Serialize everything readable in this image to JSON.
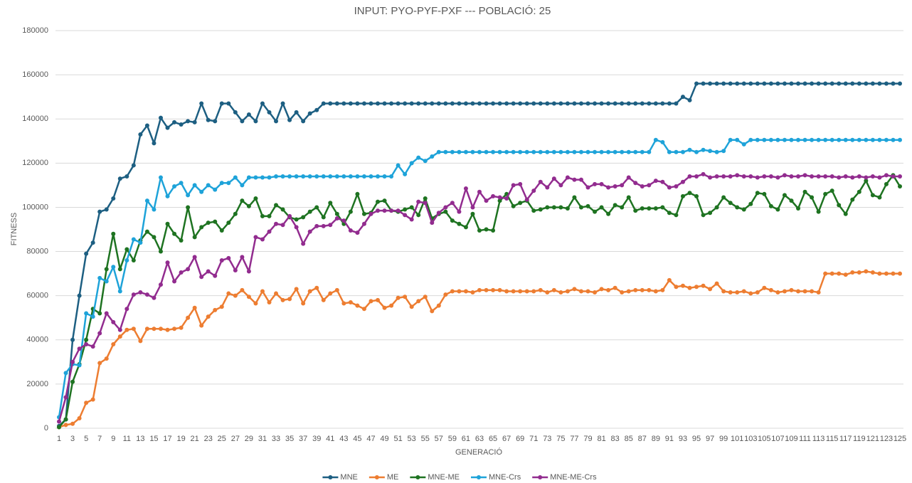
{
  "chart_data": {
    "type": "line",
    "title": "INPUT: PYO-PYF-PXF  ---  POBLACIÓ: 25",
    "x_label": "GENERACIÓ",
    "y_label": "FITNESS",
    "categories": [
      1,
      null,
      3,
      null,
      5,
      null,
      7,
      null,
      9,
      null,
      11,
      null,
      13,
      null,
      15,
      null,
      17,
      null,
      19,
      null,
      21,
      null,
      23,
      null,
      25,
      null,
      27,
      null,
      29,
      null,
      31,
      null,
      33,
      null,
      35,
      null,
      37,
      null,
      39,
      null,
      41,
      null,
      43,
      null,
      45,
      null,
      47,
      null,
      49,
      null,
      51,
      null,
      53,
      null,
      55,
      null,
      57,
      null,
      59,
      null,
      61,
      null,
      63,
      null,
      65,
      null,
      67,
      null,
      69,
      null,
      71,
      null,
      73,
      null,
      75,
      null,
      77,
      null,
      79,
      null,
      81,
      null,
      83,
      null,
      85,
      null,
      87,
      null,
      89,
      null,
      91,
      null,
      93,
      null,
      95,
      null,
      97,
      null,
      99,
      null,
      101,
      null,
      103,
      null,
      105,
      null,
      107,
      null,
      109,
      null,
      111,
      null,
      113,
      null,
      115,
      null,
      117,
      null,
      119,
      null,
      121,
      null,
      123,
      null,
      125
    ],
    "ylim": [
      0,
      180000
    ],
    "yticks": [
      0,
      20000,
      40000,
      60000,
      80000,
      100000,
      120000,
      140000,
      160000,
      180000
    ],
    "grid": true,
    "legend": "bottom",
    "series": [
      {
        "name": "MNE",
        "color": "#1d5f82",
        "values": [
          1000,
          4000,
          40000,
          60000,
          79000,
          84000,
          98000,
          99000,
          104000,
          113000,
          114000,
          119000,
          133000,
          137000,
          129000,
          140500,
          136000,
          138500,
          137500,
          139000,
          138500,
          147000,
          139500,
          139000,
          147000,
          147000,
          143000,
          139000,
          142000,
          139000,
          147000,
          143000,
          139000,
          147000,
          139500,
          143000,
          139000,
          142500,
          144000,
          147000,
          147000,
          147000,
          147000,
          147000,
          147000,
          147000,
          147000,
          147000,
          147000,
          147000,
          147000,
          147000,
          147000,
          147000,
          147000,
          147000,
          147000,
          147000,
          147000,
          147000,
          147000,
          147000,
          147000,
          147000,
          147000,
          147000,
          147000,
          147000,
          147000,
          147000,
          147000,
          147000,
          147000,
          147000,
          147000,
          147000,
          147000,
          147000,
          147000,
          147000,
          147000,
          147000,
          147000,
          147000,
          147000,
          147000,
          147000,
          147000,
          147000,
          147000,
          147000,
          147000,
          150000,
          148500,
          156000,
          156000,
          156000,
          156000,
          156000,
          156000,
          156000,
          156000,
          156000,
          156000,
          156000,
          156000,
          156000,
          156000,
          156000,
          156000,
          156000,
          156000,
          156000,
          156000,
          156000,
          156000,
          156000,
          156000,
          156000,
          156000,
          156000,
          156000,
          156000,
          156000,
          156000
        ]
      },
      {
        "name": "ME",
        "color": "#ed7d31",
        "values": [
          500,
          1500,
          2000,
          4500,
          11500,
          13000,
          29500,
          31500,
          38000,
          41500,
          44500,
          45000,
          39500,
          45000,
          45000,
          45000,
          44500,
          45000,
          45500,
          50000,
          54500,
          46500,
          50500,
          53500,
          55000,
          61000,
          60000,
          62500,
          59500,
          56500,
          62000,
          57000,
          61000,
          58000,
          58500,
          63000,
          56500,
          62000,
          63500,
          58000,
          61000,
          62500,
          56500,
          57000,
          55500,
          54000,
          57500,
          58000,
          54500,
          55500,
          59000,
          59500,
          55000,
          57500,
          59500,
          53000,
          55500,
          60500,
          62000,
          62000,
          62000,
          61500,
          62500,
          62500,
          62500,
          62500,
          62000,
          62000,
          62000,
          62000,
          62000,
          62500,
          61500,
          62500,
          61500,
          62000,
          63000,
          62000,
          62000,
          61500,
          63000,
          62500,
          63500,
          61500,
          62000,
          62500,
          62500,
          62500,
          62000,
          62500,
          67000,
          64000,
          64500,
          63500,
          64000,
          64500,
          63000,
          65500,
          62000,
          61500,
          61500,
          62000,
          61000,
          61500,
          63500,
          62500,
          61500,
          62000,
          62500,
          62000,
          62000,
          62000,
          61500,
          70000,
          70000,
          70000,
          69500,
          70500,
          70500,
          71000,
          70500,
          70000,
          70000,
          70000,
          70000
        ]
      },
      {
        "name": "MNE-ME",
        "color": "#1e7321",
        "values": [
          500,
          4000,
          21000,
          29000,
          40000,
          54000,
          52000,
          72000,
          88000,
          72000,
          81000,
          76000,
          85000,
          89000,
          86500,
          80000,
          92500,
          88000,
          85000,
          100000,
          86500,
          91000,
          93000,
          93500,
          89500,
          93000,
          97000,
          103000,
          100500,
          104000,
          96000,
          96000,
          101000,
          99000,
          95500,
          94500,
          95500,
          98000,
          100000,
          95500,
          102000,
          97000,
          92500,
          98000,
          106000,
          97000,
          97500,
          102500,
          103000,
          98500,
          98000,
          99000,
          100000,
          96500,
          104000,
          95000,
          97000,
          98000,
          94000,
          92500,
          91000,
          97000,
          89500,
          90000,
          89500,
          103000,
          106000,
          100500,
          102000,
          103000,
          98500,
          99000,
          100000,
          100000,
          100000,
          99500,
          104500,
          100000,
          100500,
          98000,
          100000,
          97000,
          101000,
          100000,
          104500,
          98500,
          99500,
          99500,
          99500,
          100000,
          97500,
          96500,
          105000,
          106500,
          105000,
          96500,
          97500,
          100000,
          104500,
          102000,
          100000,
          99000,
          101500,
          106500,
          106000,
          100500,
          99000,
          105500,
          103000,
          99500,
          107000,
          104500,
          98000,
          106000,
          107500,
          101000,
          97000,
          103500,
          107000,
          112000,
          105500,
          104500,
          110500,
          114500,
          109500
        ]
      },
      {
        "name": "MNE-Crs",
        "color": "#1ea3d9",
        "values": [
          5000,
          25000,
          29000,
          28500,
          52000,
          50500,
          68000,
          66500,
          73000,
          62000,
          76000,
          85500,
          84000,
          103000,
          99000,
          113500,
          105000,
          109500,
          111000,
          105500,
          110000,
          107000,
          110000,
          108000,
          111000,
          111000,
          113500,
          110000,
          113500,
          113500,
          113500,
          113500,
          114000,
          114000,
          114000,
          114000,
          114000,
          114000,
          114000,
          114000,
          114000,
          114000,
          114000,
          114000,
          114000,
          114000,
          114000,
          114000,
          114000,
          114000,
          119000,
          115000,
          120000,
          122500,
          121000,
          123000,
          125000,
          125000,
          125000,
          125000,
          125000,
          125000,
          125000,
          125000,
          125000,
          125000,
          125000,
          125000,
          125000,
          125000,
          125000,
          125000,
          125000,
          125000,
          125000,
          125000,
          125000,
          125000,
          125000,
          125000,
          125000,
          125000,
          125000,
          125000,
          125000,
          125000,
          125000,
          125000,
          130500,
          129500,
          125000,
          125000,
          125000,
          126000,
          125000,
          126000,
          125500,
          125000,
          125500,
          130500,
          130500,
          128500,
          130500,
          130500,
          130500,
          130500,
          130500,
          130500,
          130500,
          130500,
          130500,
          130500,
          130500,
          130500,
          130500,
          130500,
          130500,
          130500,
          130500,
          130500,
          130500,
          130500,
          130500,
          130500,
          130500
        ]
      },
      {
        "name": "MNE-ME-Crs",
        "color": "#922c8f",
        "values": [
          3000,
          14000,
          30000,
          36000,
          38000,
          37000,
          43000,
          52000,
          48000,
          44500,
          54000,
          60500,
          61500,
          60500,
          59000,
          65000,
          75000,
          66500,
          70500,
          72000,
          77500,
          68500,
          71000,
          69000,
          76000,
          77000,
          71500,
          77500,
          71000,
          86500,
          85500,
          89000,
          92500,
          92000,
          96000,
          91000,
          83500,
          89000,
          91500,
          91500,
          92000,
          95000,
          94000,
          89500,
          88500,
          92500,
          97000,
          98500,
          98500,
          98500,
          98500,
          96500,
          94500,
          102500,
          102000,
          93000,
          97500,
          100000,
          102000,
          98000,
          108500,
          100000,
          107000,
          103000,
          105000,
          104500,
          104000,
          110000,
          110500,
          103500,
          107500,
          111500,
          109000,
          113000,
          110000,
          113500,
          112500,
          112500,
          109000,
          110500,
          110500,
          109000,
          109500,
          110000,
          113500,
          111000,
          109500,
          110000,
          112000,
          111500,
          109000,
          109500,
          111500,
          114000,
          114000,
          115000,
          113500,
          114000,
          114000,
          114000,
          114500,
          114000,
          114000,
          113500,
          114000,
          114000,
          113500,
          114500,
          114000,
          114000,
          114500,
          114000,
          114000,
          114000,
          114000,
          113500,
          114000,
          113500,
          114000,
          113500,
          114000,
          113500,
          114500,
          114000,
          114000
        ]
      }
    ]
  }
}
